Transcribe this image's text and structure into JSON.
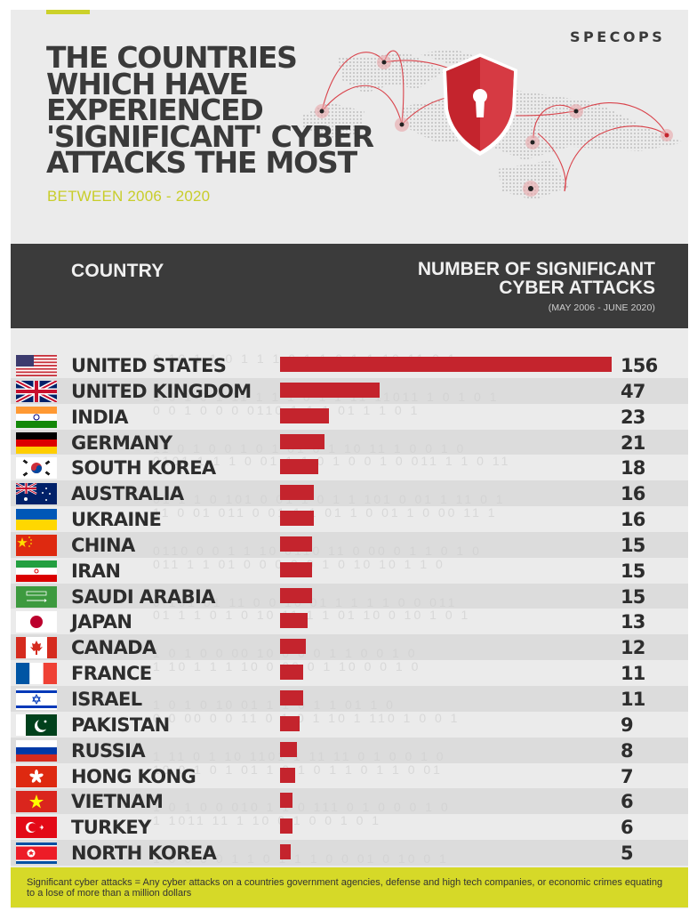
{
  "header": {
    "title_lines": [
      "THE COUNTRIES",
      "WHICH HAVE",
      "EXPERIENCED",
      "'SIGNIFICANT' CYBER",
      "ATTACKS THE MOST"
    ],
    "subtitle": "BETWEEN 2006 - 2020",
    "logo": "SPECOPS"
  },
  "table_header": {
    "country_label": "COUNTRY",
    "number_label_line1": "NUMBER OF SIGNIFICANT",
    "number_label_line2": "CYBER ATTACKS",
    "range": "(MAY 2006 - JUNE 2020)"
  },
  "colors": {
    "bar": "#c4242d",
    "accent": "#ccd12a",
    "header_bg": "#3b3b3b",
    "footer_bg": "#d6d928"
  },
  "footer": {
    "note": "Significant cyber attacks = Any cyber attacks on a countries government agencies, defense and high tech companies, or economic crimes equating to a lose of more than a million dollars"
  },
  "rows": [
    {
      "country": "UNITED STATES",
      "flag": "us-flag",
      "value": 156
    },
    {
      "country": "UNITED KINGDOM",
      "flag": "uk-flag",
      "value": 47
    },
    {
      "country": "INDIA",
      "flag": "india-flag",
      "value": 23
    },
    {
      "country": "GERMANY",
      "flag": "germany-flag",
      "value": 21
    },
    {
      "country": "SOUTH KOREA",
      "flag": "south-korea-flag",
      "value": 18
    },
    {
      "country": "AUSTRALIA",
      "flag": "australia-flag",
      "value": 16
    },
    {
      "country": "UKRAINE",
      "flag": "ukraine-flag",
      "value": 16
    },
    {
      "country": "CHINA",
      "flag": "china-flag",
      "value": 15
    },
    {
      "country": "IRAN",
      "flag": "iran-flag",
      "value": 15
    },
    {
      "country": "SAUDI ARABIA",
      "flag": "saudi-arabia-flag",
      "value": 15
    },
    {
      "country": "JAPAN",
      "flag": "japan-flag",
      "value": 13
    },
    {
      "country": "CANADA",
      "flag": "canada-flag",
      "value": 12
    },
    {
      "country": "FRANCE",
      "flag": "france-flag",
      "value": 11
    },
    {
      "country": "ISRAEL",
      "flag": "israel-flag",
      "value": 11
    },
    {
      "country": "PAKISTAN",
      "flag": "pakistan-flag",
      "value": 9
    },
    {
      "country": "RUSSIA",
      "flag": "russia-flag",
      "value": 8
    },
    {
      "country": "HONG KONG",
      "flag": "hong-kong-flag",
      "value": 7
    },
    {
      "country": "VIETNAM",
      "flag": "vietnam-flag",
      "value": 6
    },
    {
      "country": "TURKEY",
      "flag": "turkey-flag",
      "value": 6
    },
    {
      "country": "NORTH KOREA",
      "flag": "north-korea-flag",
      "value": 5
    }
  ],
  "chart_data": {
    "type": "bar",
    "orientation": "horizontal",
    "title": "The Countries Which Have Experienced 'Significant' Cyber Attacks The Most",
    "subtitle": "Between 2006 - 2020",
    "xlabel": "Number of Significant Cyber Attacks (May 2006 - June 2020)",
    "ylabel": "Country",
    "categories": [
      "United States",
      "United Kingdom",
      "India",
      "Germany",
      "South Korea",
      "Australia",
      "Ukraine",
      "China",
      "Iran",
      "Saudi Arabia",
      "Japan",
      "Canada",
      "France",
      "Israel",
      "Pakistan",
      "Russia",
      "Hong Kong",
      "Vietnam",
      "Turkey",
      "North Korea"
    ],
    "values": [
      156,
      47,
      23,
      21,
      18,
      16,
      16,
      15,
      15,
      15,
      13,
      12,
      11,
      11,
      9,
      8,
      7,
      6,
      6,
      5
    ],
    "data_labels": true,
    "grid": false,
    "legend": null,
    "xlim": [
      0,
      156
    ],
    "annotations": [
      "Significant cyber attacks = Any cyber attacks on a countries government agencies, defense and high tech companies, or economic crimes equating to a lose of more than a million dollars"
    ]
  }
}
